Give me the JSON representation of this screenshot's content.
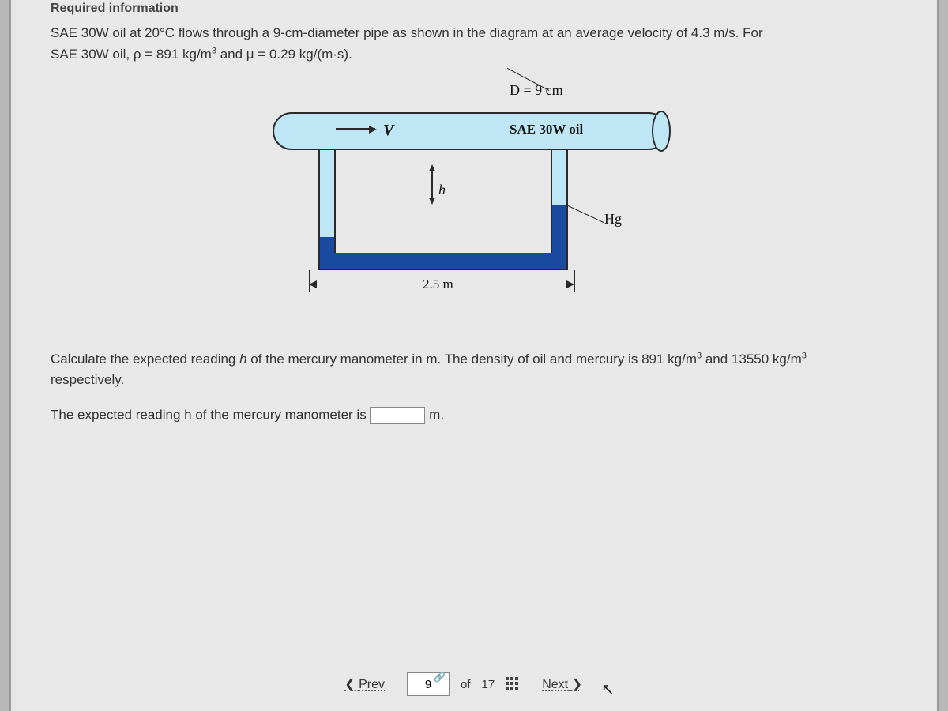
{
  "header": {
    "label": "Required information"
  },
  "problem": {
    "line1_a": "SAE 30W oil at 20°C flows through a 9-cm-diameter pipe as shown in the diagram at an average velocity of 4.3 m/s. For",
    "line2_a": "SAE 30W oil, ρ = 891 kg/m",
    "line2_sup": "3",
    "line2_b": " and μ = 0.29 kg/(m·s)."
  },
  "diagram": {
    "D_label": "D = 9 cm",
    "V_label": "V",
    "fluid_label": "SAE 30W oil",
    "h_label": "h",
    "hg_label": "Hg",
    "length_label": "2.5 m",
    "colors": {
      "oil_fill": "#bfe6f5",
      "mercury_fill": "#1a4aa0",
      "stroke": "#2a2a2a"
    }
  },
  "question": {
    "text_a": "Calculate the expected reading ",
    "text_i1": "h",
    "text_b": " of the mercury manometer in m. The density of oil and mercury is 891 kg/m",
    "sup1": "3",
    "text_c": " and 13550 kg/m",
    "sup2": "3",
    "text_d": " respectively."
  },
  "answer": {
    "prefix": "The expected reading h of the mercury manometer is ",
    "unit": " m."
  },
  "nav": {
    "prev": "Prev",
    "next": "Next",
    "current": "9",
    "of": "of",
    "total": "17"
  }
}
